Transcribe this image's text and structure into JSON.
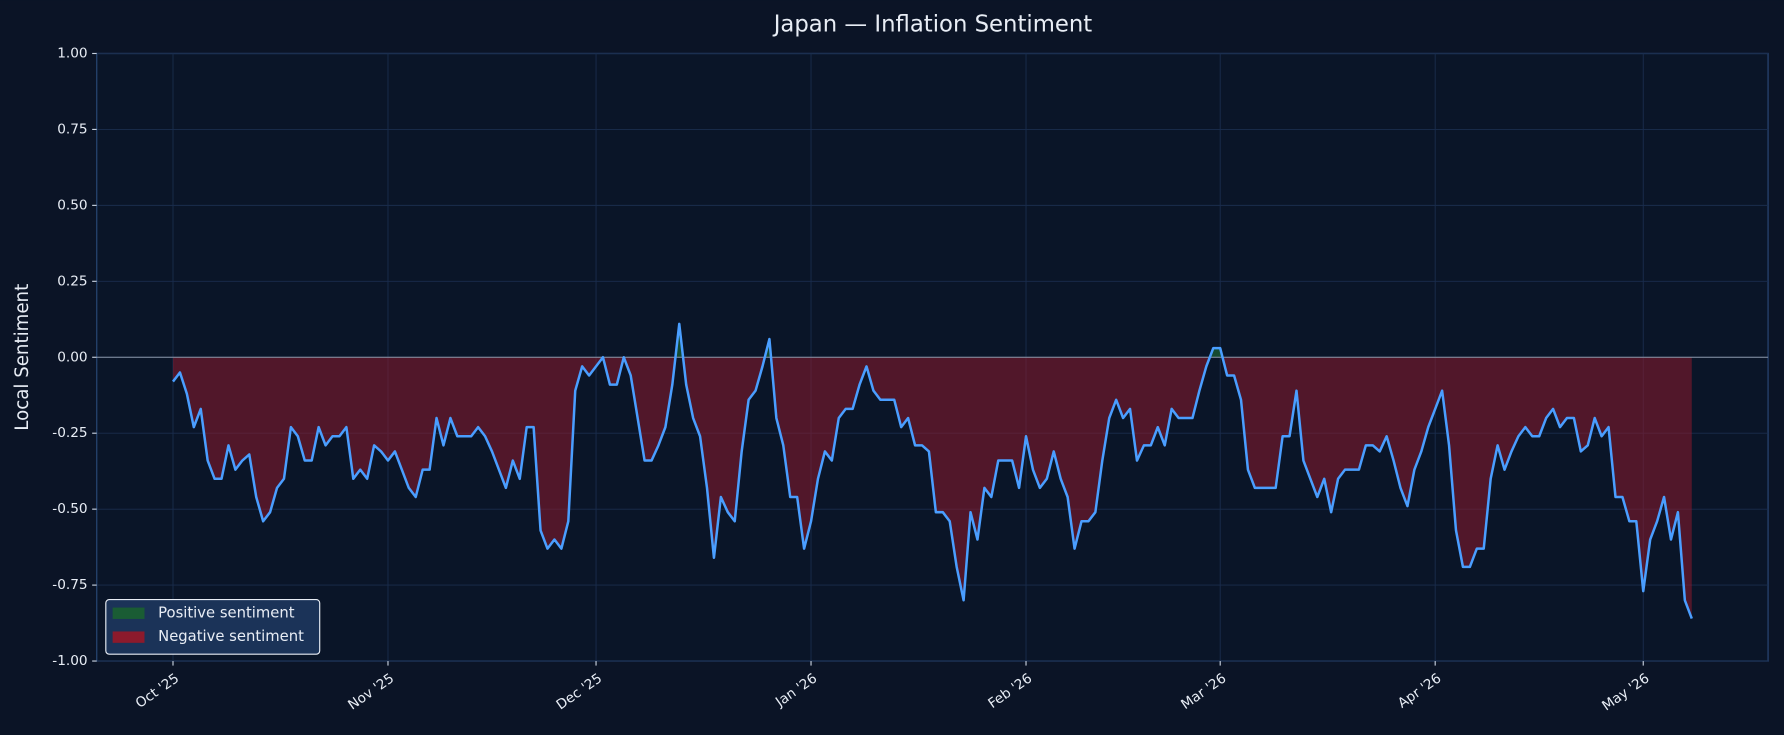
{
  "chart_data": {
    "type": "area",
    "title": "Japan — Inflation Sentiment",
    "ylabel": "Local Sentiment",
    "x": [
      0,
      1,
      2,
      3,
      4,
      5,
      6,
      7,
      8,
      9,
      10,
      11,
      12,
      13,
      14,
      15,
      16,
      17,
      18,
      19,
      20,
      21,
      22,
      23,
      24,
      25,
      26,
      27,
      28,
      29,
      30,
      31,
      32,
      33,
      34,
      35,
      36,
      37,
      38,
      39,
      40,
      41,
      42,
      43,
      44,
      45,
      46,
      47,
      48,
      49,
      50,
      51,
      52,
      53,
      54,
      55,
      56,
      57,
      58,
      59,
      60,
      61,
      62,
      63,
      64,
      65,
      66,
      67,
      68,
      69,
      70,
      71,
      72,
      73,
      74,
      75,
      76,
      77,
      78,
      79,
      80,
      81,
      82,
      83,
      84,
      85,
      86,
      87,
      88,
      89,
      90,
      91,
      92,
      93,
      94,
      95,
      96,
      97,
      98,
      99,
      100,
      101,
      102,
      103,
      104,
      105,
      106,
      107,
      108,
      109,
      110,
      111,
      112,
      113,
      114,
      115,
      116,
      117,
      118,
      119,
      120,
      121,
      122,
      123,
      124,
      125,
      126,
      127,
      128,
      129,
      130,
      131,
      132,
      133,
      134,
      135,
      136,
      137,
      138,
      139,
      140,
      141,
      142,
      143,
      144,
      145,
      146,
      147,
      148,
      149,
      150,
      151,
      152,
      153,
      154,
      155,
      156,
      157,
      158,
      159,
      160,
      161,
      162,
      163,
      164,
      165,
      166,
      167,
      168,
      169,
      170,
      171,
      172,
      173,
      174,
      175,
      176,
      177,
      178,
      179,
      180,
      181,
      182,
      183,
      184,
      185,
      186,
      187,
      188,
      189,
      190,
      191,
      192,
      193,
      194,
      195,
      196,
      197,
      198,
      199,
      200,
      201,
      202,
      203,
      204,
      205,
      206,
      207,
      208,
      209,
      210,
      211,
      212,
      213,
      214,
      215,
      216,
      217,
      218,
      219
    ],
    "values": [
      -0.08,
      -0.05,
      -0.12,
      -0.23,
      -0.17,
      -0.34,
      -0.4,
      -0.4,
      -0.29,
      -0.37,
      -0.34,
      -0.32,
      -0.46,
      -0.54,
      -0.51,
      -0.43,
      -0.4,
      -0.23,
      -0.26,
      -0.34,
      -0.34,
      -0.23,
      -0.29,
      -0.26,
      -0.26,
      -0.23,
      -0.4,
      -0.37,
      -0.4,
      -0.29,
      -0.31,
      -0.34,
      -0.31,
      -0.37,
      -0.43,
      -0.46,
      -0.37,
      -0.37,
      -0.2,
      -0.29,
      -0.2,
      -0.26,
      -0.26,
      -0.26,
      -0.23,
      -0.26,
      -0.31,
      -0.37,
      -0.43,
      -0.34,
      -0.4,
      -0.23,
      -0.23,
      -0.57,
      -0.63,
      -0.6,
      -0.63,
      -0.54,
      -0.11,
      -0.03,
      -0.06,
      -0.03,
      0.0,
      -0.09,
      -0.09,
      0.0,
      -0.06,
      -0.2,
      -0.34,
      -0.34,
      -0.29,
      -0.23,
      -0.09,
      0.11,
      -0.09,
      -0.2,
      -0.26,
      -0.43,
      -0.66,
      -0.46,
      -0.51,
      -0.54,
      -0.31,
      -0.14,
      -0.11,
      -0.03,
      0.06,
      -0.2,
      -0.29,
      -0.46,
      -0.46,
      -0.63,
      -0.54,
      -0.4,
      -0.31,
      -0.34,
      -0.2,
      -0.17,
      -0.17,
      -0.09,
      -0.03,
      -0.11,
      -0.14,
      -0.14,
      -0.14,
      -0.23,
      -0.2,
      -0.29,
      -0.29,
      -0.31,
      -0.51,
      -0.51,
      -0.54,
      -0.69,
      -0.8,
      -0.51,
      -0.6,
      -0.43,
      -0.46,
      -0.34,
      -0.34,
      -0.34,
      -0.43,
      -0.26,
      -0.37,
      -0.43,
      -0.4,
      -0.31,
      -0.4,
      -0.46,
      -0.63,
      -0.54,
      -0.54,
      -0.51,
      -0.34,
      -0.2,
      -0.14,
      -0.2,
      -0.17,
      -0.34,
      -0.29,
      -0.29,
      -0.23,
      -0.29,
      -0.17,
      -0.2,
      -0.2,
      -0.2,
      -0.11,
      -0.03,
      0.03,
      0.03,
      -0.06,
      -0.06,
      -0.14,
      -0.37,
      -0.43,
      -0.43,
      -0.43,
      -0.43,
      -0.26,
      -0.26,
      -0.11,
      -0.34,
      -0.4,
      -0.46,
      -0.4,
      -0.51,
      -0.4,
      -0.37,
      -0.37,
      -0.37,
      -0.29,
      -0.29,
      -0.31,
      -0.26,
      -0.34,
      -0.43,
      -0.49,
      -0.37,
      -0.31,
      -0.23,
      -0.17,
      -0.11,
      -0.29,
      -0.57,
      -0.69,
      -0.69,
      -0.63,
      -0.63,
      -0.4,
      -0.29,
      -0.37,
      -0.31,
      -0.26,
      -0.23,
      -0.26,
      -0.26,
      -0.2,
      -0.17,
      -0.23,
      -0.2,
      -0.2,
      -0.31,
      -0.29,
      -0.2,
      -0.26,
      -0.23,
      -0.46,
      -0.46,
      -0.54,
      -0.54,
      -0.77,
      -0.6,
      -0.54,
      -0.46,
      -0.6,
      -0.51,
      -0.8,
      -0.86
    ],
    "line_color": "#4a9eff",
    "xlim": [
      -11,
      230
    ],
    "xticks": [
      {
        "value": 0,
        "label": "Oct '25"
      },
      {
        "value": 31,
        "label": "Nov '25"
      },
      {
        "value": 61,
        "label": "Dec '25"
      },
      {
        "value": 92,
        "label": "Jan '26"
      },
      {
        "value": 123,
        "label": "Feb '26"
      },
      {
        "value": 151,
        "label": "Mar '26"
      },
      {
        "value": 182,
        "label": "Apr '26"
      },
      {
        "value": 212,
        "label": "May '26"
      }
    ],
    "ylim": [
      -1,
      1
    ],
    "yticks": [
      {
        "value": 1,
        "label": "1.00"
      },
      {
        "value": 0.75,
        "label": "0.75"
      },
      {
        "value": 0.5,
        "label": "0.50"
      },
      {
        "value": 0.25,
        "label": "0.25"
      },
      {
        "value": 0,
        "label": "0.00"
      },
      {
        "value": -0.25,
        "label": "-0.25"
      },
      {
        "value": -0.5,
        "label": "-0.50"
      },
      {
        "value": -0.75,
        "label": "-0.75"
      },
      {
        "value": -1,
        "label": "-1.00"
      }
    ],
    "grid": true,
    "legend": {
      "position": "lower left",
      "entries": [
        {
          "name": "Positive sentiment",
          "color": "#1a5c34"
        },
        {
          "name": "Negative sentiment",
          "color": "#8c1a2c"
        }
      ]
    }
  }
}
